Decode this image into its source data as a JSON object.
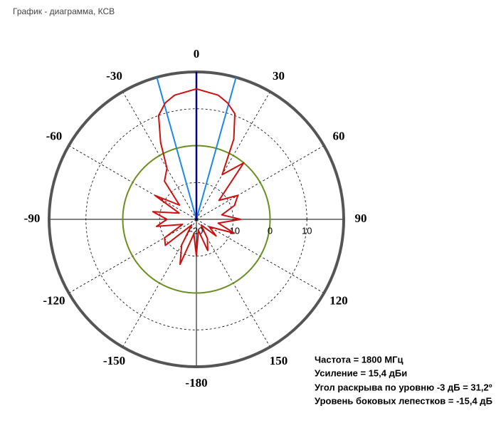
{
  "header": {
    "title": "График - диаграмма, КСВ"
  },
  "chart_data": {
    "type": "polar",
    "x": [
      -180,
      -170,
      -160,
      -150,
      -140,
      -130,
      -120,
      -110,
      -100,
      -90,
      -80,
      -70,
      -60,
      -50,
      -40,
      -30,
      -25,
      -20,
      -15,
      -10,
      0,
      10,
      15,
      20,
      25,
      30,
      40,
      50,
      60,
      70,
      80,
      90,
      100,
      110,
      120,
      130,
      140,
      150,
      160,
      170
    ],
    "values": [
      -10,
      -16,
      -7,
      -12,
      -18,
      -9,
      -10,
      -16,
      -9,
      -12,
      -8,
      -15,
      -7,
      -14,
      -6.5,
      -4,
      3,
      10,
      12.7,
      14.2,
      15.4,
      14.2,
      12.7,
      10.5,
      4,
      -6,
      0,
      -12,
      -7,
      -9,
      -13,
      -8,
      -14,
      -9,
      -16,
      -13,
      -18,
      -14,
      -11,
      -17
    ],
    "color": "#cc1111",
    "rlim": [
      -20,
      20
    ],
    "rticks": [
      -20,
      -10,
      0,
      10
    ],
    "thetaticks": [
      0,
      30,
      60,
      90,
      120,
      150,
      -180,
      -150,
      -120,
      -90,
      -60,
      -30
    ],
    "reference_ring": 0,
    "reference_color": "#6b8e23",
    "beam_lines": [
      -15.6,
      15.6
    ],
    "beam_color": "#1e88e5",
    "peak_line": 0,
    "peak_color": "#00008b"
  },
  "info": {
    "lines": [
      "Частота = 1800 МГц",
      "Усиление = 15,4 дБи",
      "Угол раскрыва по уровню -3 дБ = 31,2º",
      "Уровень боковых лепестков = -15,4 дБ"
    ]
  }
}
